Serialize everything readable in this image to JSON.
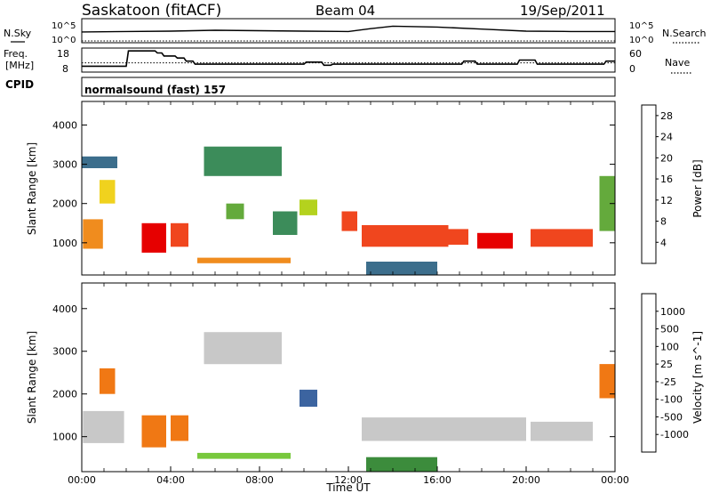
{
  "header": {
    "station": "Saskatoon (fitACF)",
    "beam": "Beam 04",
    "date": "19/Sep/2011"
  },
  "noise_panel": {
    "left_label": "N.Sky",
    "right_label": "N.Search",
    "left_ticks": [
      "10^5",
      "10^0"
    ],
    "right_ticks": [
      "10^5",
      "10^0"
    ]
  },
  "freq_panel": {
    "left_label_1": "Freq.",
    "left_label_2": "[MHz]",
    "right_label": "Nave",
    "left_ticks": [
      "18",
      "8"
    ],
    "right_ticks": [
      "60",
      "0"
    ]
  },
  "cpid": {
    "label": "CPID",
    "program": "normalsound (fast) 157"
  },
  "colors": {
    "power_scale": [
      "#0a0af0",
      "#1e3ca0",
      "#3c6e8c",
      "#3c8c5a",
      "#64aa3c",
      "#b4d21e",
      "#f0d21e",
      "#f08c1e",
      "#f0461e",
      "#e60000"
    ],
    "velocity_scale": [
      "#2846b4",
      "#3c64a0",
      "#3c8c3c",
      "#78c83c",
      "#c8c8c8",
      "#c8c8c8",
      "#f0b43c",
      "#f07814",
      "#f03214",
      "#e60000"
    ]
  },
  "chart_data": [
    {
      "type": "line",
      "title": "",
      "series": [
        {
          "name": "N.Sky",
          "x": [
            0,
            2,
            4,
            6,
            8,
            10,
            12,
            13,
            14,
            16,
            18,
            20,
            22,
            24
          ],
          "y": [
            2.2,
            2.3,
            2.4,
            2.6,
            2.5,
            2.4,
            2.3,
            3.0,
            3.6,
            3.4,
            2.9,
            2.4,
            2.3,
            2.3
          ]
        },
        {
          "name": "N.Search",
          "x": [
            0,
            24
          ],
          "y": [
            0,
            0
          ]
        }
      ],
      "xlim": [
        0,
        24
      ]
    },
    {
      "type": "line",
      "title": "",
      "ylabel": "Freq. [MHz]",
      "series": [
        {
          "name": "Freq.",
          "x": [
            0,
            2,
            2.1,
            3.3,
            3.4,
            3.6,
            3.7,
            4.2,
            4.3,
            4.6,
            4.7,
            5.0,
            5.1,
            10.0,
            10.1,
            10.8,
            10.9,
            11.2,
            11.3,
            17.1,
            17.2,
            17.7,
            17.8,
            19.6,
            19.7,
            20.4,
            20.5,
            23.5,
            23.6,
            24.0
          ],
          "y": [
            10,
            10,
            17.5,
            17.5,
            16.5,
            16.5,
            15,
            15,
            14,
            14,
            12.5,
            12.5,
            11,
            11,
            12,
            12,
            10.5,
            10.5,
            11,
            11,
            12.5,
            12.5,
            11,
            11,
            13,
            13,
            11,
            11,
            12.5,
            12.5
          ]
        },
        {
          "name": "Nave",
          "x": [
            0,
            24
          ],
          "y": [
            22,
            22
          ]
        }
      ],
      "xlim": [
        0,
        24
      ]
    },
    {
      "type": "heatmap",
      "title": "",
      "xlabel": "",
      "ylabel": "Slant Range [km]",
      "colorbar_label": "Power [dB]",
      "colorbar_ticks": [
        "4",
        "8",
        "12",
        "16",
        "20",
        "24",
        "28"
      ],
      "y_ticks": [
        "1000",
        "2000",
        "3000",
        "4000"
      ],
      "xlim": [
        0,
        24
      ],
      "ylim": [
        180,
        4600
      ],
      "regions": [
        {
          "x": [
            0.05,
            0.95
          ],
          "y": [
            850,
            1600
          ],
          "v": 22
        },
        {
          "x": [
            0.8,
            1.5
          ],
          "y": [
            2000,
            2600
          ],
          "v": 18
        },
        {
          "x": [
            0.0,
            1.6
          ],
          "y": [
            2900,
            3200
          ],
          "v": 8
        },
        {
          "x": [
            2.7,
            3.8
          ],
          "y": [
            750,
            1500
          ],
          "v": 27
        },
        {
          "x": [
            4.0,
            4.8
          ],
          "y": [
            900,
            1500
          ],
          "v": 26
        },
        {
          "x": [
            5.2,
            9.4
          ],
          "y": [
            480,
            620
          ],
          "v": 21
        },
        {
          "x": [
            5.5,
            9.0
          ],
          "y": [
            2700,
            3450
          ],
          "v": 9
        },
        {
          "x": [
            6.5,
            7.3
          ],
          "y": [
            1600,
            2000
          ],
          "v": 12
        },
        {
          "x": [
            8.6,
            9.7
          ],
          "y": [
            1200,
            1800
          ],
          "v": 10
        },
        {
          "x": [
            9.8,
            10.6
          ],
          "y": [
            1700,
            2100
          ],
          "v": 16
        },
        {
          "x": [
            11.7,
            12.4
          ],
          "y": [
            1300,
            1800
          ],
          "v": 24
        },
        {
          "x": [
            12.6,
            16.5
          ],
          "y": [
            900,
            1450
          ],
          "v": 25
        },
        {
          "x": [
            16.5,
            17.4
          ],
          "y": [
            950,
            1350
          ],
          "v": 26
        },
        {
          "x": [
            17.8,
            19.4
          ],
          "y": [
            850,
            1250
          ],
          "v": 27
        },
        {
          "x": [
            20.2,
            23.0
          ],
          "y": [
            900,
            1350
          ],
          "v": 26
        },
        {
          "x": [
            23.3,
            24.0
          ],
          "y": [
            1300,
            2700
          ],
          "v": 14
        },
        {
          "x": [
            12.8,
            16.0
          ],
          "y": [
            180,
            520
          ],
          "v": 6
        }
      ]
    },
    {
      "type": "heatmap",
      "title": "",
      "xlabel": "Time UT",
      "ylabel": "Slant Range [km]",
      "colorbar_label": "Velocity [m s^-1]",
      "colorbar_ticks": [
        "1000",
        "500",
        "100",
        "25",
        "-25",
        "-100",
        "-500",
        "-1000"
      ],
      "x_ticks": [
        "00:00",
        "04:00",
        "08:00",
        "12:00",
        "16:00",
        "20:00",
        "00:00"
      ],
      "y_ticks": [
        "1000",
        "2000",
        "3000",
        "4000"
      ],
      "xlim": [
        0,
        24
      ],
      "ylim": [
        180,
        4600
      ],
      "regions": [
        {
          "x": [
            0.05,
            1.9
          ],
          "y": [
            850,
            1600
          ],
          "v": 0
        },
        {
          "x": [
            0.8,
            1.5
          ],
          "y": [
            2000,
            2600
          ],
          "v": -150
        },
        {
          "x": [
            2.7,
            3.8
          ],
          "y": [
            750,
            1500
          ],
          "v": -200
        },
        {
          "x": [
            4.0,
            4.8
          ],
          "y": [
            900,
            1500
          ],
          "v": -120
        },
        {
          "x": [
            5.2,
            9.4
          ],
          "y": [
            480,
            620
          ],
          "v": 10
        },
        {
          "x": [
            5.5,
            9.0
          ],
          "y": [
            2700,
            3450
          ],
          "v": 0
        },
        {
          "x": [
            9.8,
            10.6
          ],
          "y": [
            1700,
            2100
          ],
          "v": 300
        },
        {
          "x": [
            12.6,
            20.0
          ],
          "y": [
            900,
            1450
          ],
          "v": 0
        },
        {
          "x": [
            20.2,
            23.0
          ],
          "y": [
            900,
            1350
          ],
          "v": 0
        },
        {
          "x": [
            23.3,
            24.0
          ],
          "y": [
            1900,
            2700
          ],
          "v": -150
        },
        {
          "x": [
            12.8,
            16.0
          ],
          "y": [
            180,
            520
          ],
          "v": 50
        }
      ]
    }
  ]
}
